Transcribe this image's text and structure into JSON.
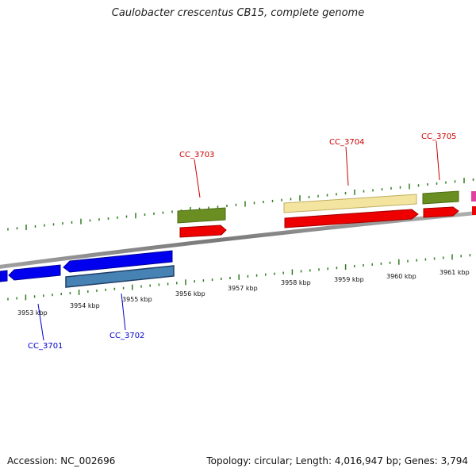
{
  "title": "Caulobacter crescentus CB15, complete genome",
  "footer": {
    "accession": "Accession: NC_002696",
    "summary": "Topology: circular; Length: 4,016,947 bp; Genes: 3,794"
  },
  "colors": {
    "backbone": "#8a8a8a",
    "tick": "#2e7d1e",
    "label_top": "#cc0000",
    "label_bottom": "#0000cc",
    "gene_green": "#6b8e23",
    "gene_red": "#ee0000",
    "gene_yellow": "#f3e5a0",
    "gene_blue": "#0000ee",
    "gene_steel": "#4682b4",
    "gene_magenta": "#e040a0"
  },
  "scale": {
    "unit": "kbp",
    "labels": [
      "3953 kbp",
      "3954 kbp",
      "3955 kbp",
      "3956 kbp",
      "3957 kbp",
      "3958 kbp",
      "3959 kbp",
      "3960 kbp",
      "3961 kbp"
    ]
  },
  "genes": {
    "top": [
      {
        "name": "CC_3703",
        "color": "#cc0000"
      },
      {
        "name": "CC_3704",
        "color": "#cc0000"
      },
      {
        "name": "CC_3705",
        "color": "#cc0000"
      }
    ],
    "bottom": [
      {
        "name": "CC_3701",
        "color": "#0000cc"
      },
      {
        "name": "CC_3702",
        "color": "#0000cc"
      }
    ]
  }
}
